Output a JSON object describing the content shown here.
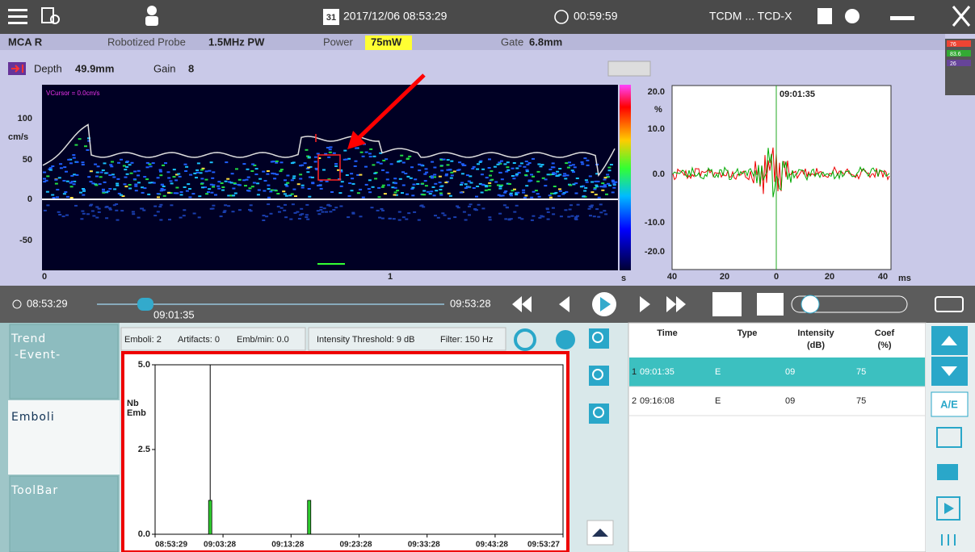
{
  "top_bar": {
    "calendar_day": "31",
    "datetime": "2017/12/06  08:53:29",
    "timer": "00:59:59",
    "mode": "TCDM ... TCD-X"
  },
  "info_bar": {
    "vessel": "MCA R",
    "probe_label": "Robotized Probe",
    "probe": "1.5MHz PW",
    "power_label": "Power",
    "power": "75mW",
    "gate_label": "Gate",
    "gate": "6.8mm"
  },
  "side_indicators": [
    "76",
    "83.6",
    "26"
  ],
  "depth_bar": {
    "depth_label": "Depth",
    "depth": "49.9mm",
    "gain_label": "Gain",
    "gain": "8"
  },
  "spectrum": {
    "cursor_label": "VCursor = 0.0cm/s",
    "y_unit": "cm/s",
    "y_ticks": [
      "100",
      "50",
      "0",
      "-50"
    ],
    "x_ticks": [
      "0",
      "1"
    ],
    "x_unit": "s"
  },
  "waveform": {
    "time": "09:01:35",
    "y_unit": "%",
    "y_ticks": [
      "20.0",
      "10.0",
      "0.0",
      "-10.0",
      "-20.0"
    ],
    "x_ticks": [
      "40",
      "20",
      "0",
      "20",
      "40"
    ],
    "x_unit": "ms"
  },
  "playback": {
    "start": "08:53:29",
    "position": "09:01:35",
    "end": "09:53:28"
  },
  "tabs": {
    "trend": "Trend",
    "trend_sub": "-Event-",
    "emboli": "Emboli",
    "toolbar": "ToolBar"
  },
  "stats": {
    "emboli": "Emboli: 2",
    "artifacts": "Artifacts: 0",
    "rate": "Emb/min: 0.0",
    "threshold": "Intensity Threshold: 9 dB",
    "filter": "Filter: 150 Hz"
  },
  "chart_data": {
    "type": "bar",
    "y_label": "Nb",
    "y_label_2": "Emb",
    "x": [
      "09:01:35",
      "09:16:08"
    ],
    "values": [
      1,
      1
    ],
    "color": "#2ecc2e",
    "ylim": [
      0,
      5
    ],
    "yticks": [
      {
        "value": 0,
        "label": "0.0"
      },
      {
        "value": 2.5,
        "label": "2.5"
      },
      {
        "value": 5,
        "label": "5.0"
      }
    ],
    "xlim": [
      "08:53:29",
      "09:53:27"
    ],
    "xticks": [
      "08:53:29",
      "09:03:28",
      "09:13:28",
      "09:23:28",
      "09:33:28",
      "09:43:28",
      "09:53:27"
    ]
  },
  "table": {
    "headers": [
      "Time",
      "Type",
      "Intensity",
      "(dB)",
      "Coef",
      "(%)"
    ],
    "rows": [
      [
        "1",
        "09:01:35",
        "E",
        "09",
        "75"
      ],
      [
        "2",
        "09:16:08",
        "E",
        "09",
        "75"
      ]
    ]
  },
  "buttons": {
    "ae": "A/E"
  }
}
